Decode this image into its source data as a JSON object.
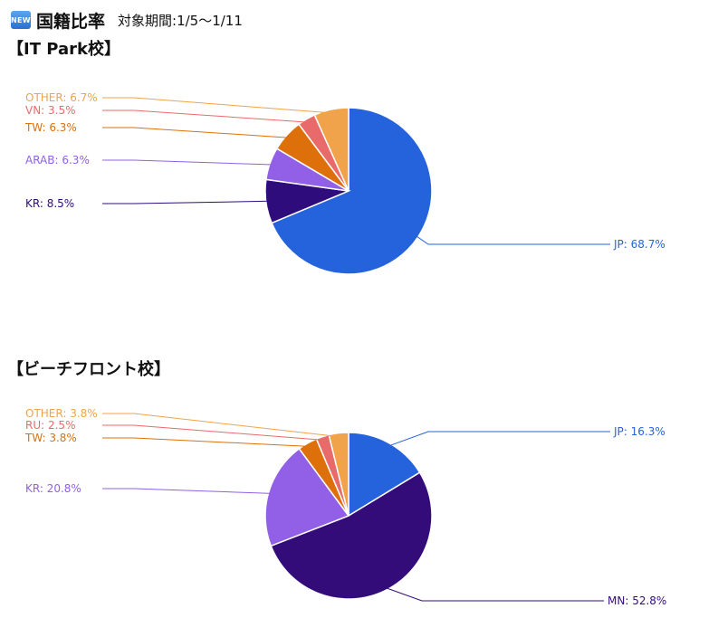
{
  "header": {
    "badge": "NEW",
    "title": "国籍比率",
    "period": "対象期間:1/5〜1/11"
  },
  "chart_data": [
    {
      "type": "pie",
      "title": "【IT Park校】",
      "slices": [
        {
          "label": "JP",
          "value": 68.7,
          "color": "#2563dc",
          "display": "JP: 68.7%"
        },
        {
          "label": "KR",
          "value": 8.5,
          "color": "#2e0c7c",
          "display": "KR: 8.5%"
        },
        {
          "label": "ARAB",
          "value": 6.3,
          "color": "#9160e6",
          "display": "ARAB: 6.3%"
        },
        {
          "label": "TW",
          "value": 6.3,
          "color": "#dd700b",
          "display": "TW: 6.3%"
        },
        {
          "label": "VN",
          "value": 3.5,
          "color": "#e96a6a",
          "display": "VN: 3.5%"
        },
        {
          "label": "OTHER",
          "value": 6.7,
          "color": "#f0a34a",
          "display": "OTHER: 6.7%"
        }
      ]
    },
    {
      "type": "pie",
      "title": "【ビーチフロント校】",
      "slices": [
        {
          "label": "JP",
          "value": 16.3,
          "color": "#2563dc",
          "display": "JP: 16.3%"
        },
        {
          "label": "MN",
          "value": 52.8,
          "color": "#330c7a",
          "display": "MN: 52.8%"
        },
        {
          "label": "KR",
          "value": 20.8,
          "color": "#9160e6",
          "display": "KR: 20.8%"
        },
        {
          "label": "TW",
          "value": 3.8,
          "color": "#dd700b",
          "display": "TW: 3.8%"
        },
        {
          "label": "RU",
          "value": 2.5,
          "color": "#e96a6a",
          "display": "RU: 2.5%"
        },
        {
          "label": "OTHER",
          "value": 3.8,
          "color": "#f0a34a",
          "display": "OTHER: 3.8%"
        }
      ]
    }
  ]
}
